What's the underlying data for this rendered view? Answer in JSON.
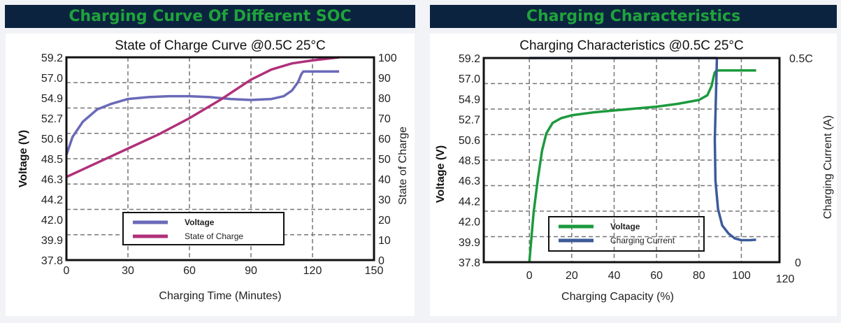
{
  "panels": [
    {
      "header": "Charging Curve Of Different SOC"
    },
    {
      "header": "Charging Characteristics"
    }
  ],
  "chart_data": [
    {
      "type": "line",
      "title": "State of Charge Curve @0.5C 25°C",
      "xlabel": "Charging Time (Minutes)",
      "ylabel": "Voltage (V)",
      "y2label": "State of Charge",
      "xlim": [
        0,
        150
      ],
      "x_ticks": [
        "0",
        "30",
        "60",
        "90",
        "120",
        "150"
      ],
      "ylim": [
        37.8,
        59.2
      ],
      "y_ticks": [
        "59.2",
        "57.0",
        "54.9",
        "52.7",
        "50.6",
        "48.5",
        "46.3",
        "44.2",
        "42.0",
        "39.9",
        "37.8"
      ],
      "y2lim": [
        0,
        100
      ],
      "y2_ticks": [
        "100",
        "90",
        "80",
        "70",
        "60",
        "50",
        "40",
        "30",
        "20",
        "10",
        "0"
      ],
      "grid": true,
      "legend": "bottom-center",
      "series": [
        {
          "name": "Voltage",
          "axis": "left",
          "color": "#6a6ab8",
          "x": [
            0,
            3,
            8,
            15,
            22,
            30,
            40,
            50,
            60,
            70,
            80,
            90,
            100,
            106,
            110,
            113,
            114.5,
            115.5,
            120,
            133
          ],
          "y": [
            48.9,
            50.8,
            52.4,
            53.7,
            54.3,
            54.8,
            55.0,
            55.1,
            55.1,
            55.0,
            54.8,
            54.7,
            54.8,
            55.1,
            55.7,
            56.6,
            57.4,
            57.7,
            57.7,
            57.7
          ]
        },
        {
          "name": "State of Charge",
          "axis": "right",
          "color": "#b0307a",
          "x": [
            0,
            15,
            30,
            45,
            60,
            75,
            90,
            100,
            110,
            120,
            133
          ],
          "y": [
            41,
            48,
            55,
            62,
            70,
            79,
            89,
            94,
            97,
            98.5,
            100
          ]
        }
      ]
    },
    {
      "type": "line",
      "title": "Charging Characteristics @0.5C 25°C",
      "xlabel": "Charging Capacity (%)",
      "ylabel": "Voltage (V)",
      "y2label": "Charging Current (A)",
      "xlim": [
        -21.5,
        118
      ],
      "x_ticks": [
        "0",
        "20",
        "40",
        "60",
        "80",
        "100",
        "120"
      ],
      "ylim": [
        37.8,
        59.2
      ],
      "y_ticks": [
        "59.2",
        "57.0",
        "54.9",
        "52.7",
        "50.6",
        "48.5",
        "46.3",
        "44.2",
        "42.0",
        "39.9",
        "37.8"
      ],
      "y2lim": [
        0,
        0.5
      ],
      "y2_ticks": [
        "0.5C",
        "0"
      ],
      "grid": true,
      "legend": "bottom-center",
      "series": [
        {
          "name": "Voltage",
          "axis": "left",
          "color": "#1d9a3e",
          "x": [
            0,
            2,
            4,
            6,
            8,
            11,
            15,
            20,
            30,
            40,
            50,
            60,
            70,
            80,
            84,
            86,
            87,
            87.5,
            88.5,
            100,
            107
          ],
          "y": [
            37.8,
            43.0,
            46.5,
            49.5,
            51.3,
            52.4,
            52.9,
            53.2,
            53.5,
            53.7,
            53.9,
            54.1,
            54.4,
            54.8,
            55.3,
            56.3,
            57.3,
            57.7,
            57.9,
            57.9,
            57.9
          ]
        },
        {
          "name": "Charging Current",
          "axis": "right",
          "color": "#3d5b9a",
          "x": [
            0,
            87,
            88.5,
            87.5,
            87.8,
            89,
            91,
            94,
            97,
            100,
            104,
            107
          ],
          "y": [
            0.5,
            0.5,
            0.5,
            0.3,
            0.2,
            0.13,
            0.09,
            0.07,
            0.058,
            0.054,
            0.054,
            0.055
          ]
        }
      ]
    }
  ]
}
